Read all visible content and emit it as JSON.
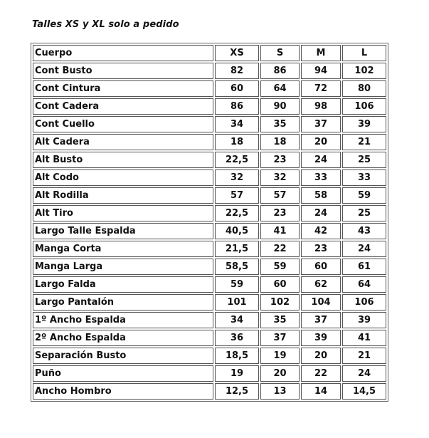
{
  "title": "Talles XS y XL solo a pedido",
  "table": {
    "headers": [
      "Cuerpo",
      "XS",
      "S",
      "M",
      "L"
    ],
    "rows": [
      [
        "Cont Busto",
        "82",
        "86",
        "94",
        "102"
      ],
      [
        "Cont Cintura",
        "60",
        "64",
        "72",
        "80"
      ],
      [
        "Cont Cadera",
        "86",
        "90",
        "98",
        "106"
      ],
      [
        "Cont Cuello",
        "34",
        "35",
        "37",
        "39"
      ],
      [
        "Alt Cadera",
        "18",
        "18",
        "20",
        "21"
      ],
      [
        "Alt Busto",
        "22,5",
        "23",
        "24",
        "25"
      ],
      [
        "Alt Codo",
        "32",
        "32",
        "33",
        "33"
      ],
      [
        "Alt Rodilla",
        "57",
        "57",
        "58",
        "59"
      ],
      [
        "Alt Tiro",
        "22,5",
        "23",
        "24",
        "25"
      ],
      [
        "Largo Talle Espalda",
        "40,5",
        "41",
        "42",
        "43"
      ],
      [
        "Manga Corta",
        "21,5",
        "22",
        "23",
        "24"
      ],
      [
        "Manga Larga",
        "58,5",
        "59",
        "60",
        "61"
      ],
      [
        "Largo Falda",
        "59",
        "60",
        "62",
        "64"
      ],
      [
        "Largo Pantalón",
        "101",
        "102",
        "104",
        "106"
      ],
      [
        "1º Ancho Espalda",
        "34",
        "35",
        "37",
        "39"
      ],
      [
        "2º Ancho Espalda",
        "36",
        "37",
        "39",
        "41"
      ],
      [
        "Separación Busto",
        "18,5",
        "19",
        "20",
        "21"
      ],
      [
        "Puño",
        "19",
        "20",
        "22",
        "24"
      ],
      [
        "Ancho Hombro",
        "12,5",
        "13",
        "14",
        "14,5"
      ]
    ]
  }
}
